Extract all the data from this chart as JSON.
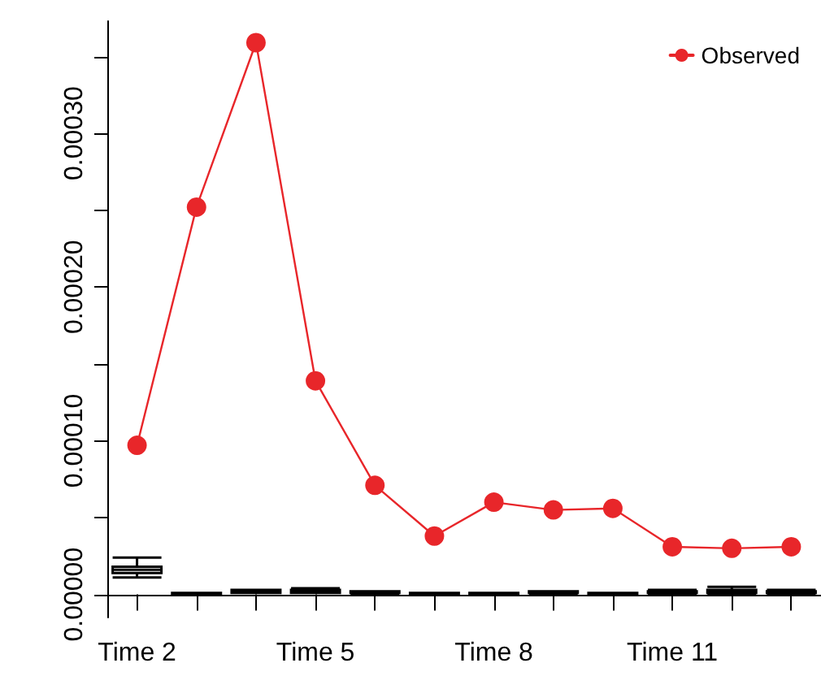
{
  "chart_data": {
    "type": "line",
    "categories": [
      "Time 2",
      null,
      null,
      "Time 5",
      null,
      null,
      "Time 8",
      null,
      null,
      "Time 11",
      null,
      null
    ],
    "series": [
      {
        "name": "Observed",
        "color": "#e8262a",
        "values": [
          9.7e-05,
          0.000252,
          0.000359,
          0.000139,
          7.1e-05,
          3.8e-05,
          6e-05,
          5.5e-05,
          5.6e-05,
          3.1e-05,
          3e-05,
          3.1e-05
        ]
      },
      {
        "type": "box",
        "color": "#000000",
        "boxes": [
          {
            "low": 1.1e-05,
            "q1": 1.4e-05,
            "median": 1.6e-05,
            "q3": 1.8e-05,
            "high": 2.4e-05
          },
          {
            "low": 0,
            "q1": 0,
            "median": 1e-06,
            "q3": 1e-06,
            "high": 1e-06
          },
          {
            "low": 1e-06,
            "q1": 1e-06,
            "median": 2e-06,
            "q3": 3e-06,
            "high": 3e-06
          },
          {
            "low": 1e-06,
            "q1": 1e-06,
            "median": 2e-06,
            "q3": 3e-06,
            "high": 4e-06
          },
          {
            "low": 0,
            "q1": 1e-06,
            "median": 2e-06,
            "q3": 2e-06,
            "high": 2e-06
          },
          {
            "low": 0,
            "q1": 0,
            "median": 1e-06,
            "q3": 1e-06,
            "high": 1e-06
          },
          {
            "low": 0,
            "q1": 0,
            "median": 1e-06,
            "q3": 1e-06,
            "high": 1e-06
          },
          {
            "low": 0,
            "q1": 1e-06,
            "median": 1e-06,
            "q3": 2e-06,
            "high": 2e-06
          },
          {
            "low": 0,
            "q1": 0,
            "median": 1e-06,
            "q3": 1e-06,
            "high": 1e-06
          },
          {
            "low": 0,
            "q1": 1e-06,
            "median": 2e-06,
            "q3": 2e-06,
            "high": 3e-06
          },
          {
            "low": 0,
            "q1": 1e-06,
            "median": 2e-06,
            "q3": 3e-06,
            "high": 5e-06
          },
          {
            "low": 0,
            "q1": 1e-06,
            "median": 2e-06,
            "q3": 2e-06,
            "high": 3e-06
          }
        ]
      }
    ],
    "ylim": [
      -1.5e-05,
      0.000373
    ],
    "yticks": [
      {
        "value": 0,
        "label": "0.00000"
      },
      {
        "value": 5e-05,
        "label": null
      },
      {
        "value": 0.0001,
        "label": "0.00010"
      },
      {
        "value": 0.00015,
        "label": null
      },
      {
        "value": 0.0002,
        "label": "0.00020"
      },
      {
        "value": 0.00025,
        "label": null
      },
      {
        "value": 0.0003,
        "label": "0.00030"
      },
      {
        "value": 0.00035,
        "label": null
      }
    ],
    "marker": "circle",
    "line_style": "solid",
    "grid": false,
    "legend": "top right"
  }
}
